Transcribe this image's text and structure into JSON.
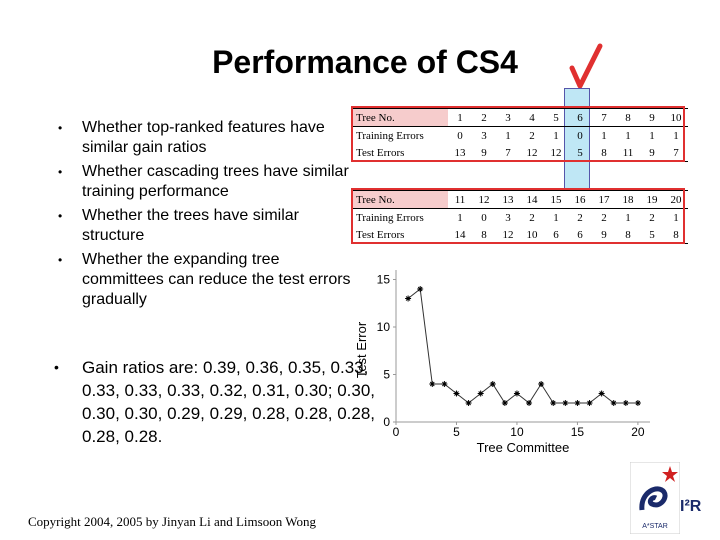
{
  "slide": {
    "title": "Performance of CS4",
    "bullets": [
      "Whether top-ranked features have similar gain ratios",
      "Whether cascading trees have similar training performance",
      "Whether the trees have similar structure",
      "Whether the expanding tree committees can reduce the test errors gradually"
    ],
    "gain_text": "Gain ratios are: 0.39, 0.36, 0.35, 0.33, 0.33, 0.33, 0.33, 0.32, 0.31, 0.30; 0.30, 0.30, 0.30, 0.29, 0.29, 0.28, 0.28, 0.28, 0.28, 0.28.",
    "footer": "Copyright 2004, 2005 by Jinyan Li and Limsoon Wong",
    "logo_text": "A*STAR",
    "i2r_text": "I²R",
    "check_color": "#e03030"
  },
  "table1": {
    "headers": [
      "Tree No.",
      "1",
      "2",
      "3",
      "4",
      "5",
      "6",
      "7",
      "8",
      "9",
      "10"
    ],
    "rows": [
      [
        "Training Errors",
        "0",
        "3",
        "1",
        "2",
        "1",
        "0",
        "1",
        "1",
        "1",
        "1"
      ],
      [
        "Test Errors",
        "13",
        "9",
        "7",
        "12",
        "12",
        "5",
        "8",
        "11",
        "9",
        "7"
      ]
    ]
  },
  "table2": {
    "headers": [
      "Tree No.",
      "11",
      "12",
      "13",
      "14",
      "15",
      "16",
      "17",
      "18",
      "19",
      "20"
    ],
    "rows": [
      [
        "Training Errors",
        "1",
        "0",
        "3",
        "2",
        "1",
        "2",
        "2",
        "1",
        "2",
        "1"
      ],
      [
        "Test Errors",
        "14",
        "8",
        "12",
        "10",
        "6",
        "6",
        "9",
        "8",
        "5",
        "8"
      ]
    ]
  },
  "chart_data": {
    "type": "line",
    "xlabel": "Tree Committee",
    "ylabel": "Test Error",
    "xlim": [
      0,
      21
    ],
    "ylim": [
      0,
      16
    ],
    "xticks": [
      "0",
      "5",
      "10",
      "15",
      "20"
    ],
    "yticks": [
      "0",
      "5",
      "10",
      "15"
    ],
    "x": [
      1,
      2,
      3,
      4,
      5,
      6,
      7,
      8,
      9,
      10,
      11,
      12,
      13,
      14,
      15,
      16,
      17,
      18,
      19,
      20
    ],
    "y": [
      13,
      14,
      4,
      4,
      3,
      2,
      3,
      4,
      2,
      3,
      2,
      4,
      2,
      2,
      2,
      2,
      3,
      2,
      2,
      2
    ]
  }
}
